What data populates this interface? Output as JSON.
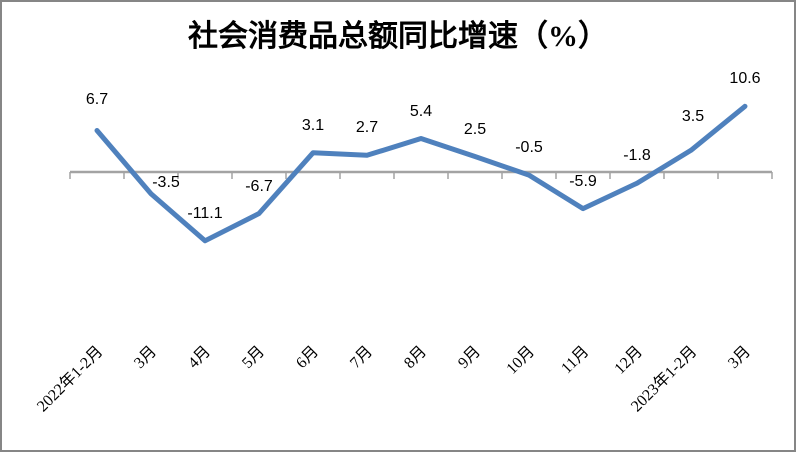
{
  "chart_data": {
    "type": "line",
    "title": "社会消费品总额同比增速（%）",
    "categories": [
      "2022年1-2月",
      "3月",
      "4月",
      "5月",
      "6月",
      "7月",
      "8月",
      "9月",
      "10月",
      "11月",
      "12月",
      "2023年1-2月",
      "3月"
    ],
    "values": [
      6.7,
      -3.5,
      -11.1,
      -6.7,
      3.1,
      2.7,
      5.4,
      2.5,
      -0.5,
      -5.9,
      -1.8,
      3.5,
      10.6
    ],
    "data_labels": [
      "6.7",
      "-3.5",
      "-11.1",
      "-6.7",
      "3.1",
      "2.7",
      "5.4",
      "2.5",
      "-0.5",
      "-5.9",
      "-1.8",
      "3.5",
      "10.6"
    ],
    "xlabel": "",
    "ylabel": "",
    "ylim": [
      -13,
      12
    ],
    "grid": false,
    "legend": false,
    "x_tick_rotation_deg": 45,
    "colors": {
      "line": "#4F81BD",
      "axis": "#A3A3A3",
      "text": "#000000",
      "background": "#FFFFFF",
      "border": "#868686"
    }
  }
}
